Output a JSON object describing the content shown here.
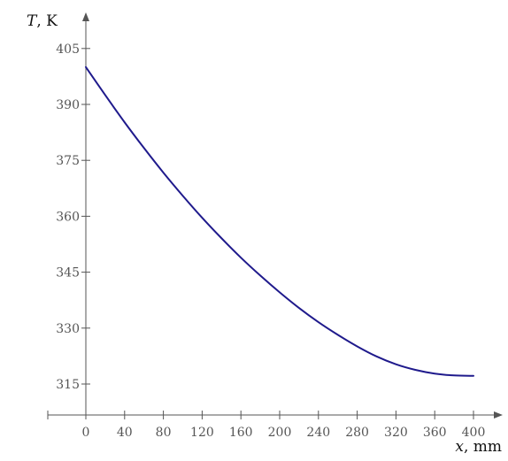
{
  "chart_data": {
    "type": "line",
    "title": "",
    "xlabel_var": "x",
    "xlabel_unit": ", mm",
    "ylabel_var": "T",
    "ylabel_unit": ", K",
    "xlim": [
      -40,
      430
    ],
    "ylim": [
      306.5,
      410
    ],
    "x_ticks": [
      0,
      40,
      80,
      120,
      160,
      200,
      240,
      280,
      320,
      360,
      400
    ],
    "y_ticks": [
      315,
      330,
      345,
      360,
      375,
      390,
      405
    ],
    "grid": false,
    "series": [
      {
        "color": "#1f1a8c",
        "points": [
          [
            0,
            400.0
          ],
          [
            20,
            392.5
          ],
          [
            40,
            385.2
          ],
          [
            60,
            378.3
          ],
          [
            80,
            371.7
          ],
          [
            100,
            365.5
          ],
          [
            120,
            359.6
          ],
          [
            140,
            354.1
          ],
          [
            160,
            348.9
          ],
          [
            180,
            344.1
          ],
          [
            200,
            339.6
          ],
          [
            220,
            335.4
          ],
          [
            240,
            331.6
          ],
          [
            260,
            328.2
          ],
          [
            280,
            325.1
          ],
          [
            300,
            322.4
          ],
          [
            320,
            320.3
          ],
          [
            340,
            318.8
          ],
          [
            360,
            317.8
          ],
          [
            380,
            317.3
          ],
          [
            400,
            317.2
          ]
        ]
      }
    ]
  },
  "colors": {
    "axis": "#555555",
    "tick_label": "#555555",
    "axis_title": "#111111",
    "line": "#1f1a8c",
    "background": "#ffffff"
  }
}
